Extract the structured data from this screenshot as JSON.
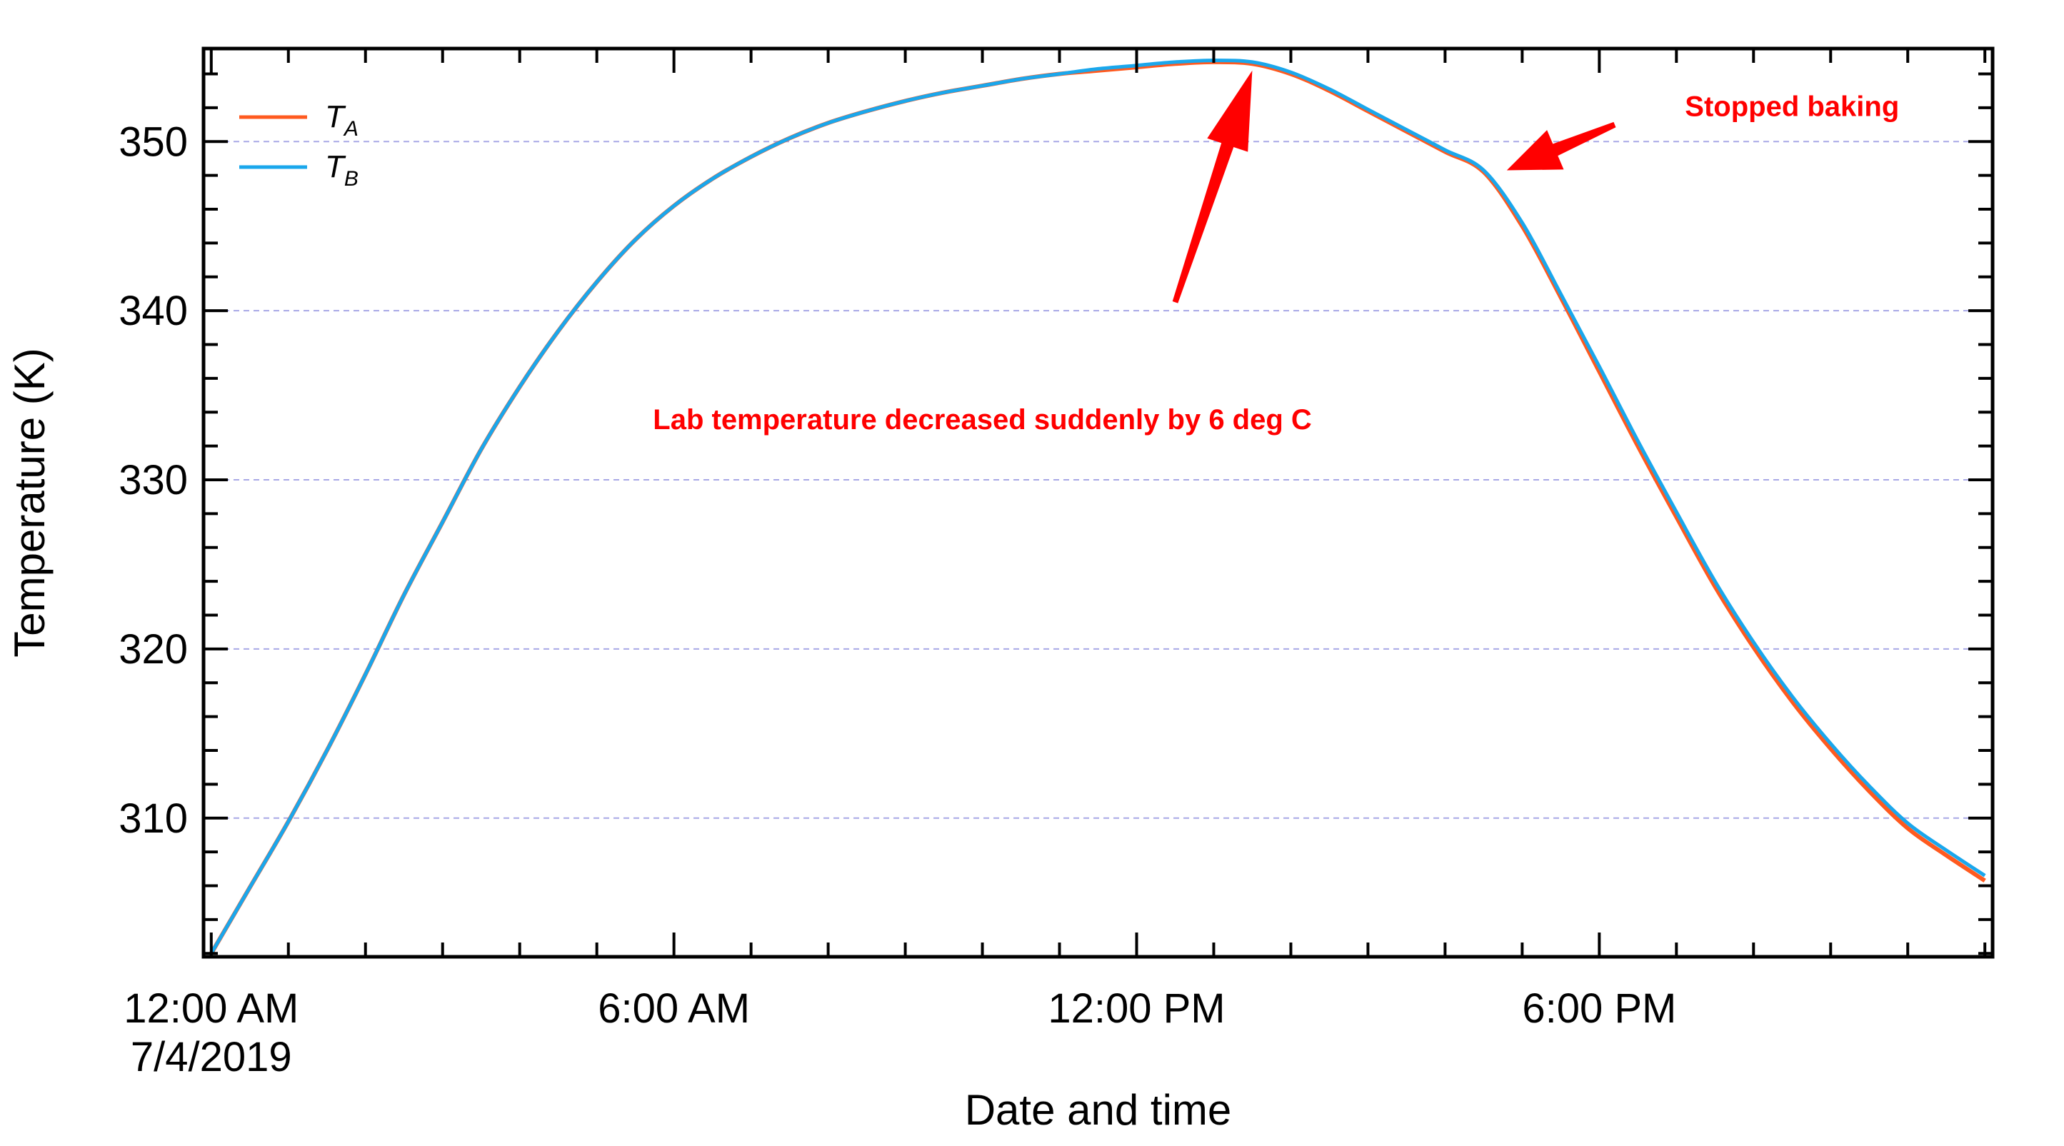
{
  "chart_data": {
    "type": "line",
    "xlabel": "Date and time",
    "ylabel": "Temperature (K)",
    "x_unit": "hours after 12:00 AM 7/4/2019",
    "xlim": [
      -0.1,
      23.1
    ],
    "ylim": [
      301.8,
      355.5
    ],
    "grid": "horizontal dashed",
    "legend_position": "top-left",
    "x_ticks": [
      {
        "x": 0,
        "label": "12:00 AM",
        "label2": "7/4/2019"
      },
      {
        "x": 6,
        "label": "6:00 AM",
        "label2": ""
      },
      {
        "x": 12,
        "label": "12:00 PM",
        "label2": ""
      },
      {
        "x": 18,
        "label": "6:00 PM",
        "label2": ""
      }
    ],
    "y_ticks": [
      310,
      320,
      330,
      340,
      350
    ],
    "x": [
      0,
      0.5,
      1,
      1.5,
      2,
      2.5,
      3,
      3.5,
      4,
      4.5,
      5,
      5.5,
      6,
      6.5,
      7,
      7.5,
      8,
      8.5,
      9,
      9.5,
      10,
      10.5,
      11,
      11.5,
      12,
      12.5,
      13,
      13.5,
      14,
      14.5,
      15,
      15.5,
      16,
      16.5,
      17,
      17.5,
      18,
      18.5,
      19,
      19.5,
      20,
      20.5,
      21,
      21.5,
      22,
      22.5,
      23
    ],
    "series": [
      {
        "name": "T",
        "subscript": "A",
        "color": "#ff5a1f",
        "values": [
          302.0,
          305.9,
          309.8,
          314.0,
          318.5,
          323.2,
          327.5,
          331.8,
          335.5,
          338.8,
          341.7,
          344.2,
          346.2,
          347.8,
          349.1,
          350.2,
          351.1,
          351.8,
          352.4,
          352.9,
          353.3,
          353.7,
          354.0,
          354.2,
          354.4,
          354.6,
          354.7,
          354.6,
          354.0,
          353.0,
          351.8,
          350.6,
          349.4,
          348.2,
          345.0,
          340.8,
          336.4,
          332.0,
          327.8,
          323.7,
          320.1,
          316.9,
          314.1,
          311.6,
          309.4,
          307.8,
          306.3
        ]
      },
      {
        "name": "T",
        "subscript": "B",
        "color": "#1aa7ec",
        "values": [
          302.0,
          305.9,
          309.8,
          314.0,
          318.5,
          323.2,
          327.5,
          331.8,
          335.5,
          338.8,
          341.7,
          344.2,
          346.2,
          347.8,
          349.1,
          350.2,
          351.1,
          351.8,
          352.4,
          352.9,
          353.3,
          353.7,
          354.0,
          354.3,
          354.5,
          354.7,
          354.8,
          354.7,
          354.1,
          353.1,
          351.9,
          350.7,
          349.5,
          348.3,
          345.2,
          341.0,
          336.7,
          332.3,
          328.1,
          324.0,
          320.4,
          317.2,
          314.4,
          311.9,
          309.7,
          308.1,
          306.6
        ]
      }
    ],
    "annotations": [
      {
        "text": "Lab temperature decreased suddenly by 6 deg C",
        "x": 10,
        "y": 333.0,
        "arrow_to": [
          13.5,
          354.2
        ],
        "arrow_from": [
          12.5,
          340.5
        ]
      },
      {
        "text": "Stopped baking",
        "x": 20.5,
        "y": 351.5,
        "arrow_to": [
          16.8,
          348.3
        ],
        "arrow_from": [
          18.2,
          351.0
        ]
      }
    ]
  }
}
